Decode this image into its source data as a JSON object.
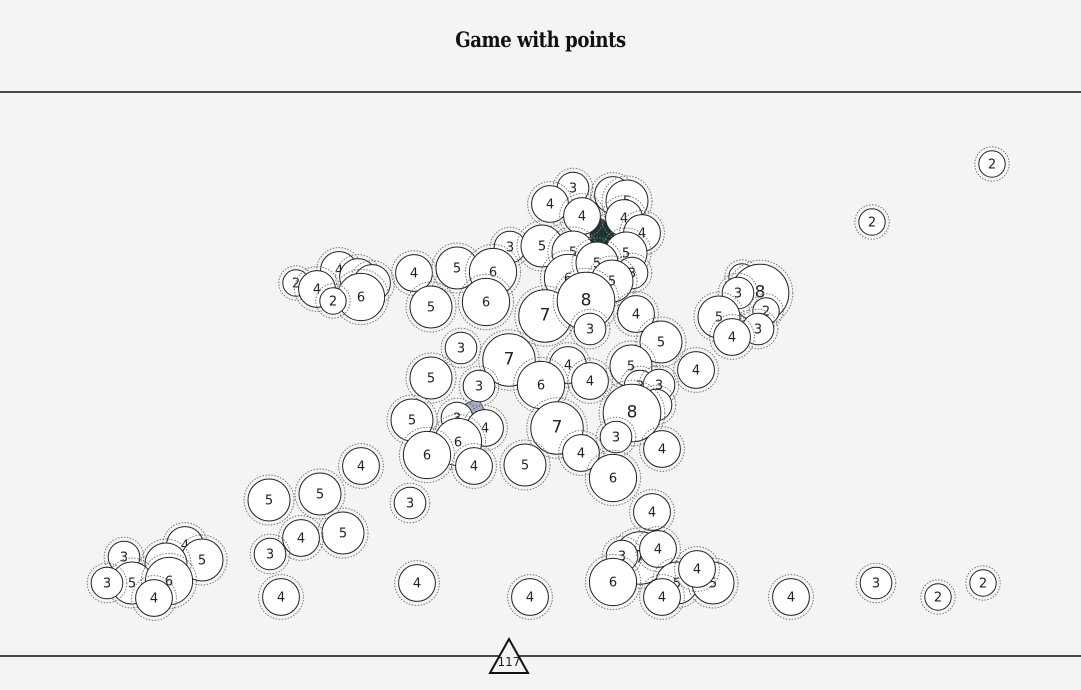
{
  "title": "Game with points",
  "score": "117",
  "colors": {
    "background": "#f5f3f4",
    "circle_fill": "#ffffff",
    "circle_stroke": "#222222",
    "filled_dark": "#1d3534",
    "filled_light": "#a9aec9"
  },
  "circles": [
    {
      "v": "2"
    },
    {
      "v": "2"
    },
    {
      "v": "3"
    },
    {
      "v": "4"
    },
    {
      "v": "4"
    },
    {
      "v": "5"
    },
    {
      "v": "4"
    },
    {
      "v": "4"
    },
    {
      "v": "4"
    },
    {
      "v": "3"
    },
    {
      "v": "5"
    },
    {
      "v": "5"
    },
    {
      "v": "5"
    },
    {
      "v": "6"
    },
    {
      "v": "5"
    },
    {
      "v": "3"
    },
    {
      "v": "5"
    },
    {
      "v": "2"
    },
    {
      "v": "4"
    },
    {
      "v": "4"
    },
    {
      "v": "4"
    },
    {
      "v": "6"
    },
    {
      "v": "4"
    },
    {
      "v": "2"
    },
    {
      "v": "4"
    },
    {
      "v": "5"
    },
    {
      "v": "6"
    },
    {
      "v": "5"
    },
    {
      "v": "6"
    },
    {
      "v": "7"
    },
    {
      "v": "8"
    },
    {
      "v": "3"
    },
    {
      "v": "4"
    },
    {
      "v": "2"
    },
    {
      "v": "8"
    },
    {
      "v": "3"
    },
    {
      "v": "2"
    },
    {
      "v": "5"
    },
    {
      "v": "3"
    },
    {
      "v": "4"
    },
    {
      "v": "5"
    },
    {
      "v": "3"
    },
    {
      "v": "7"
    },
    {
      "v": "5"
    },
    {
      "v": "3"
    },
    {
      "v": "4"
    },
    {
      "v": "4"
    },
    {
      "v": "6"
    },
    {
      "v": "5"
    },
    {
      "v": "3"
    },
    {
      "v": "3"
    },
    {
      "v": "3"
    },
    {
      "v": "4"
    },
    {
      "v": "3"
    },
    {
      "v": "5"
    },
    {
      "v": "8"
    },
    {
      "v": "4"
    },
    {
      "v": "7"
    },
    {
      "v": "3"
    },
    {
      "v": "4"
    },
    {
      "v": "6"
    },
    {
      "v": "6"
    },
    {
      "v": "4"
    },
    {
      "v": "5"
    },
    {
      "v": "4"
    },
    {
      "v": "6"
    },
    {
      "v": "4"
    },
    {
      "v": "5"
    },
    {
      "v": "3"
    },
    {
      "v": "5"
    },
    {
      "v": "4"
    },
    {
      "v": "5"
    },
    {
      "v": "4"
    },
    {
      "v": "4"
    },
    {
      "v": "3"
    },
    {
      "v": "3"
    },
    {
      "v": "7"
    },
    {
      "v": "3"
    },
    {
      "v": "4"
    },
    {
      "v": "5"
    },
    {
      "v": "5"
    },
    {
      "v": "5"
    },
    {
      "v": "6"
    },
    {
      "v": "3"
    },
    {
      "v": "4"
    },
    {
      "v": "5"
    },
    {
      "v": "5"
    },
    {
      "v": "6"
    },
    {
      "v": "2"
    },
    {
      "v": "4"
    },
    {
      "v": "4"
    },
    {
      "v": "4"
    },
    {
      "v": "4"
    },
    {
      "v": "4"
    },
    {
      "v": "4"
    },
    {
      "v": "3"
    },
    {
      "v": "2"
    }
  ]
}
